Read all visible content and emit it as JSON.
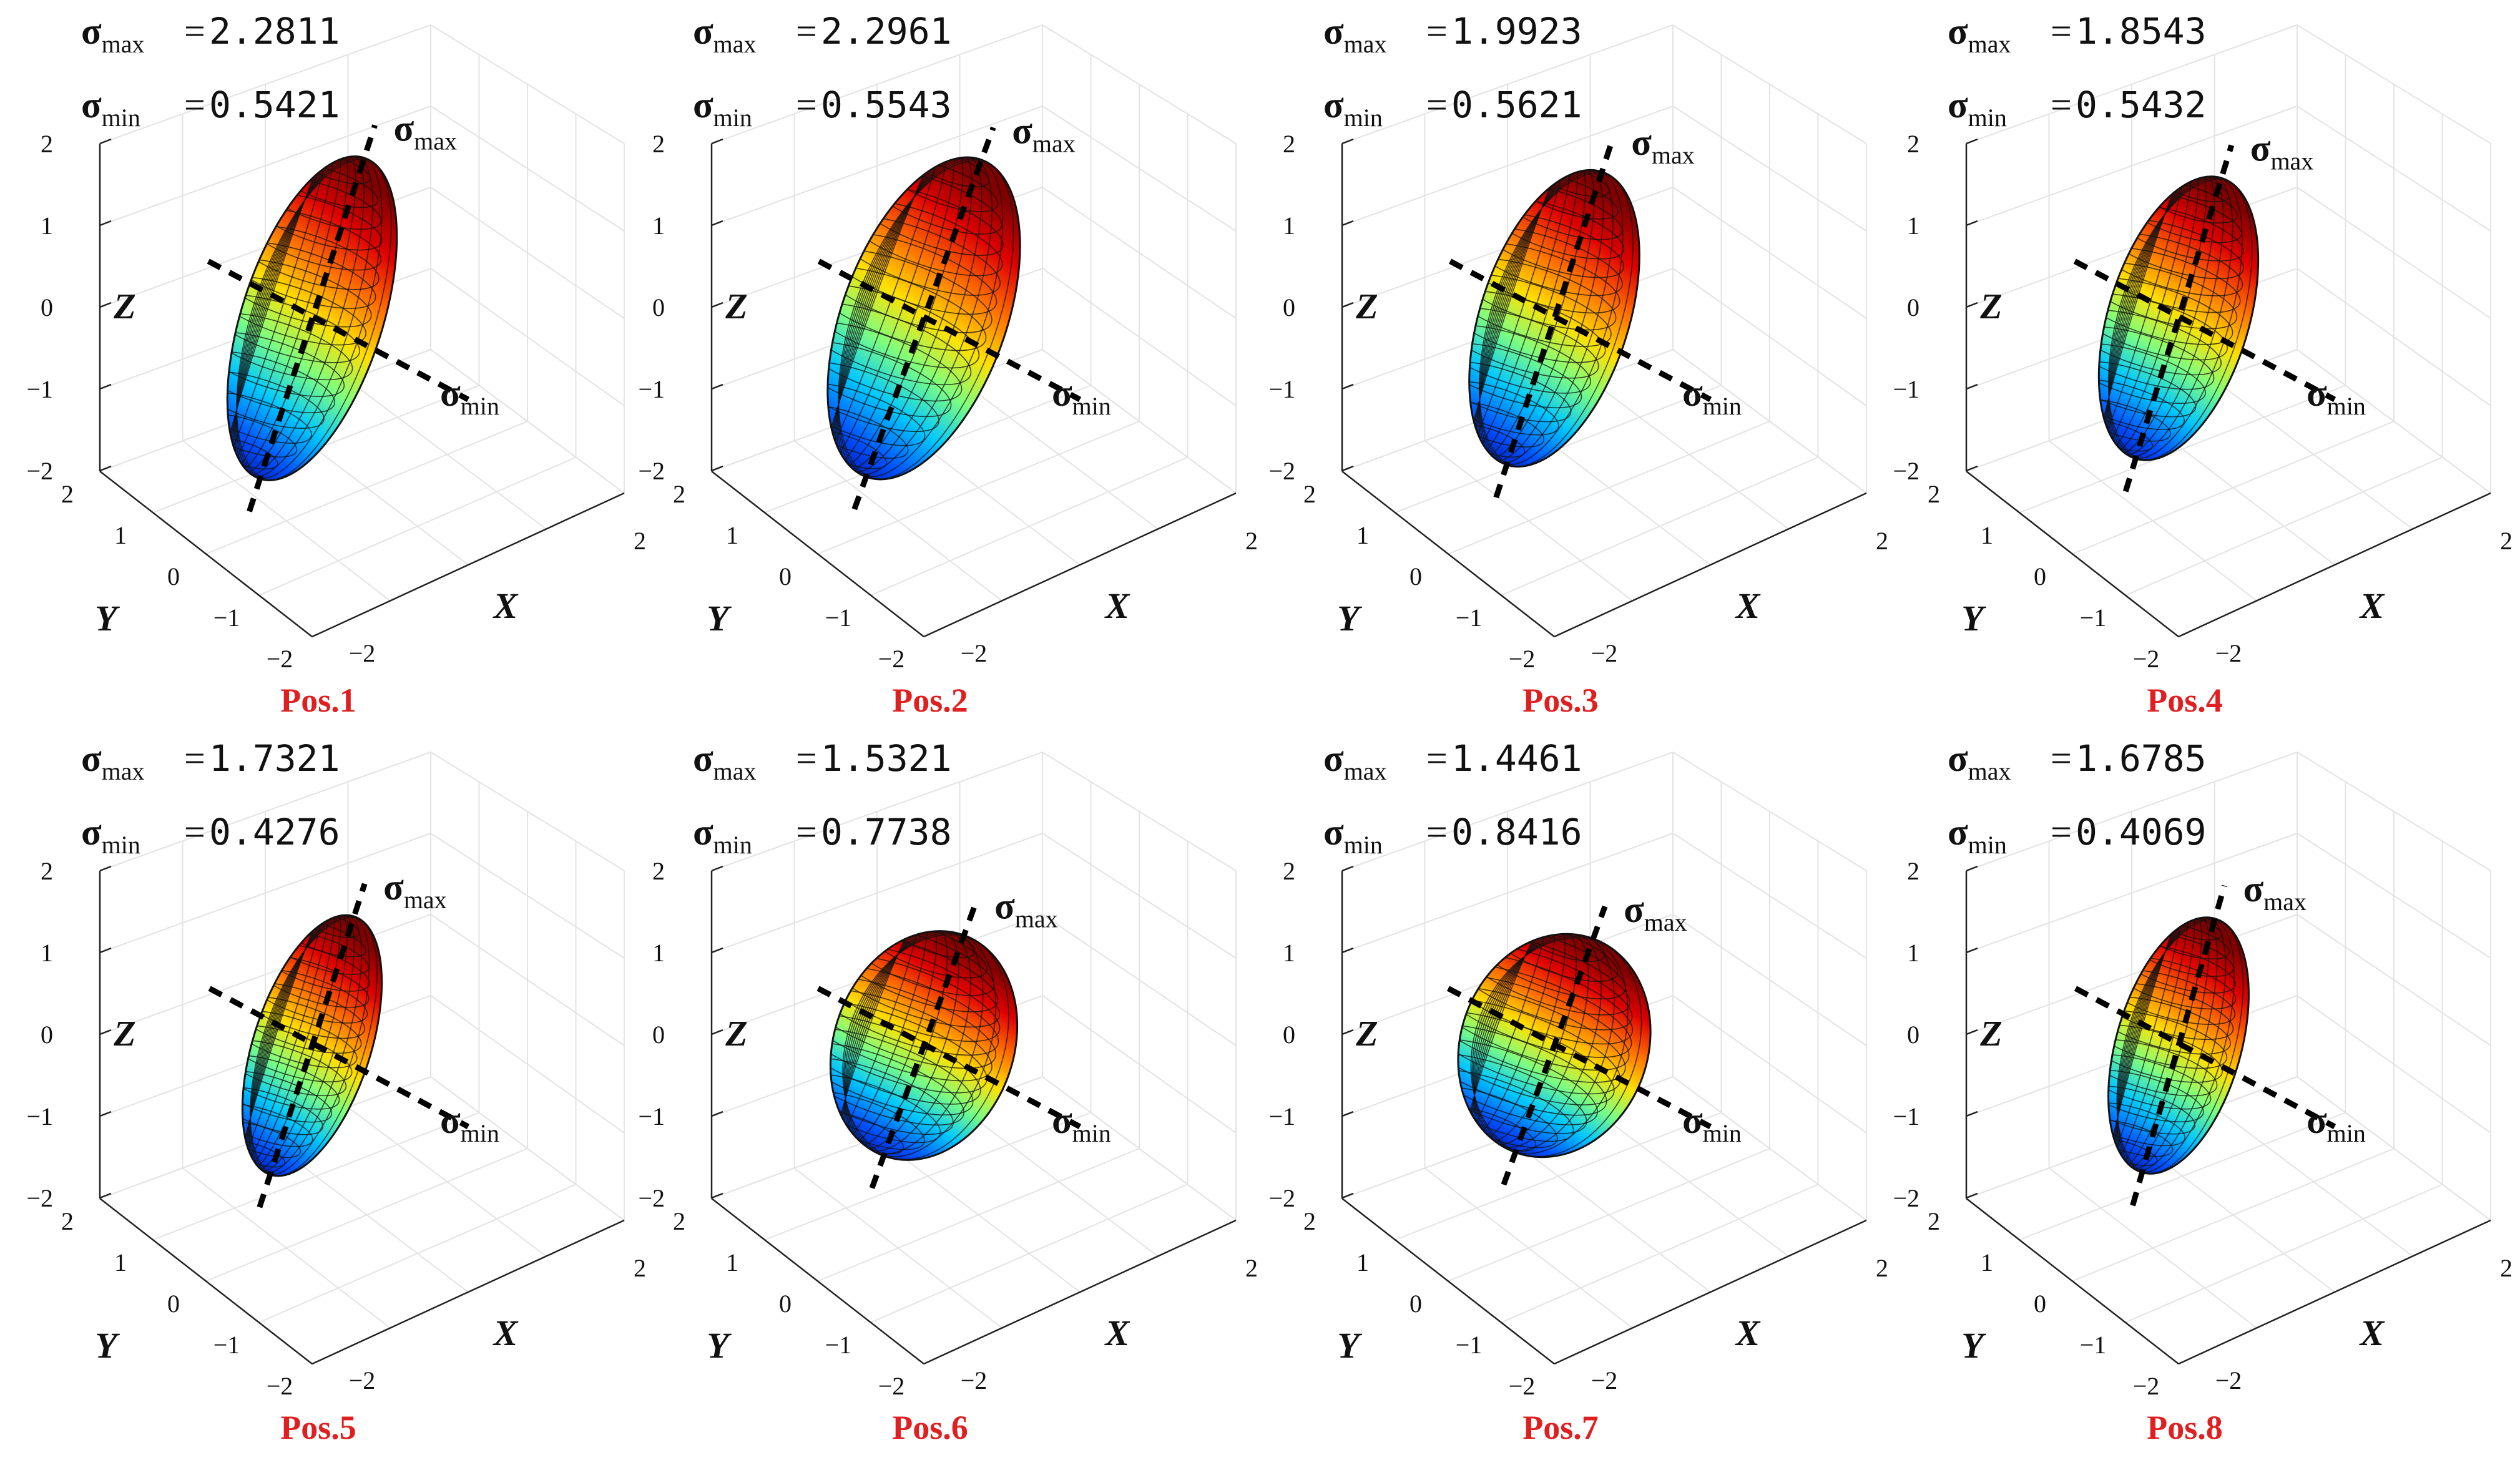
{
  "chart_data": [
    {
      "type": "ellipsoid3d",
      "label": "Pos.1",
      "sigma_max": "2.2811",
      "sigma_min": "0.5421",
      "length": 2.3,
      "width": 0.9,
      "tilt_deg": 18
    },
    {
      "type": "ellipsoid3d",
      "label": "Pos.2",
      "sigma_max": "2.2961",
      "sigma_min": "0.5543",
      "length": 2.3,
      "width": 1.05,
      "tilt_deg": 20
    },
    {
      "type": "ellipsoid3d",
      "label": "Pos.3",
      "sigma_max": "1.9923",
      "sigma_min": "0.5621",
      "length": 2.1,
      "width": 0.95,
      "tilt_deg": 18
    },
    {
      "type": "ellipsoid3d",
      "label": "Pos.4",
      "sigma_max": "1.8543",
      "sigma_min": "0.5432",
      "length": 2.0,
      "width": 0.9,
      "tilt_deg": 17
    },
    {
      "type": "ellipsoid3d",
      "label": "Pos.5",
      "sigma_max": "1.7321",
      "sigma_min": "0.4276",
      "length": 1.85,
      "width": 0.75,
      "tilt_deg": 18
    },
    {
      "type": "ellipsoid3d",
      "label": "Pos.6",
      "sigma_max": "1.5321",
      "sigma_min": "0.7738",
      "length": 1.6,
      "width": 1.15,
      "tilt_deg": 20
    },
    {
      "type": "ellipsoid3d",
      "label": "Pos.7",
      "sigma_max": "1.4461",
      "sigma_min": "0.8416",
      "length": 1.55,
      "width": 1.2,
      "tilt_deg": 20
    },
    {
      "type": "ellipsoid3d",
      "label": "Pos.8",
      "sigma_max": "1.6785",
      "sigma_min": "0.4069",
      "length": 1.8,
      "width": 0.8,
      "tilt_deg": 16
    }
  ],
  "labels": {
    "sigma": "σ",
    "max_sub": "max",
    "min_sub": "min",
    "eq": "=",
    "x_axis": "X",
    "y_axis": "Y",
    "z_axis": "Z"
  },
  "axes": {
    "z_ticks": [
      "2",
      "1",
      "0",
      "−1",
      "−2"
    ],
    "y_ticks": [
      "2",
      "1",
      "0",
      "−1",
      "−2"
    ],
    "x_ticks": [
      "−2",
      "2"
    ]
  },
  "colormap": [
    "#00008f",
    "#0050ff",
    "#00c8ff",
    "#7fff7f",
    "#ffe000",
    "#ff7000",
    "#e00000",
    "#800000"
  ]
}
